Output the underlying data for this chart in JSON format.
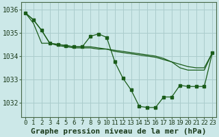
{
  "title": "Graphe pression niveau de la mer (hPa)",
  "background_color": "#cce8e8",
  "grid_color": "#aacccc",
  "line_color": "#1a5c1a",
  "ylim": [
    1031.4,
    1036.3
  ],
  "yticks": [
    1032,
    1033,
    1034,
    1035,
    1036
  ],
  "x_labels": [
    "0",
    "1",
    "2",
    "3",
    "4",
    "5",
    "6",
    "7",
    "8",
    "9",
    "10",
    "11",
    "12",
    "13",
    "14",
    "15",
    "16",
    "17",
    "18",
    "19",
    "20",
    "21",
    "22",
    "23"
  ],
  "series_main": [
    1035.85,
    1035.55,
    1035.1,
    1034.55,
    1034.5,
    1034.45,
    1034.4,
    1034.4,
    1034.85,
    1034.95,
    1034.8,
    1033.75,
    1033.05,
    1032.55,
    1031.85,
    1031.8,
    1031.8,
    1032.25,
    1032.25,
    1032.75,
    1032.7,
    1032.7,
    1032.7,
    1034.15
  ],
  "series_trend": [
    1035.85,
    1035.55,
    1035.1,
    1034.55,
    1034.5,
    1034.45,
    1034.4,
    1034.4,
    1034.4,
    1034.35,
    1034.3,
    1034.2,
    1034.15,
    1034.1,
    1034.05,
    1034.0,
    1033.95,
    1033.85,
    1033.75,
    1033.65,
    1033.55,
    1033.5,
    1033.5,
    1034.15
  ],
  "series_smooth": [
    1035.85,
    1035.4,
    1034.55,
    1034.55,
    1034.45,
    1034.4,
    1034.35,
    1034.35,
    1034.35,
    1034.3,
    1034.3,
    1034.25,
    1034.2,
    1034.15,
    1034.1,
    1034.05,
    1034.0,
    1033.9,
    1033.75,
    1033.5,
    1033.4,
    1033.4,
    1033.4,
    1034.15
  ],
  "title_fontsize": 8,
  "tick_fontsize": 6.5
}
